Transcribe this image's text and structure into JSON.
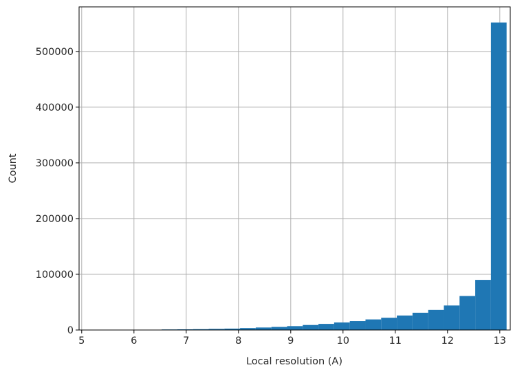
{
  "chart_data": {
    "type": "bar",
    "histogram": true,
    "xlabel": "Local resolution (A)",
    "ylabel": "Count",
    "xlim": [
      4.95,
      13.2
    ],
    "ylim": [
      0,
      580000
    ],
    "x_ticks": [
      5,
      6,
      7,
      8,
      9,
      10,
      11,
      12,
      13
    ],
    "y_ticks": [
      0,
      100000,
      200000,
      300000,
      400000,
      500000
    ],
    "grid": true,
    "bar_color": "#1f77b4",
    "bin_edges": [
      5.03,
      5.33,
      5.63,
      5.93,
      6.23,
      6.53,
      6.83,
      7.13,
      7.43,
      7.73,
      8.03,
      8.33,
      8.63,
      8.93,
      9.23,
      9.53,
      9.83,
      10.13,
      10.43,
      10.73,
      11.03,
      11.33,
      11.63,
      11.93,
      12.23,
      12.53,
      12.83
    ],
    "values": [
      0,
      0,
      0,
      200,
      500,
      1000,
      1200,
      1500,
      2000,
      2500,
      3500,
      4500,
      5500,
      7000,
      9000,
      11000,
      13500,
      16000,
      19000,
      22000,
      26000,
      31000,
      36000,
      44000,
      61000,
      90000,
      552000
    ]
  }
}
